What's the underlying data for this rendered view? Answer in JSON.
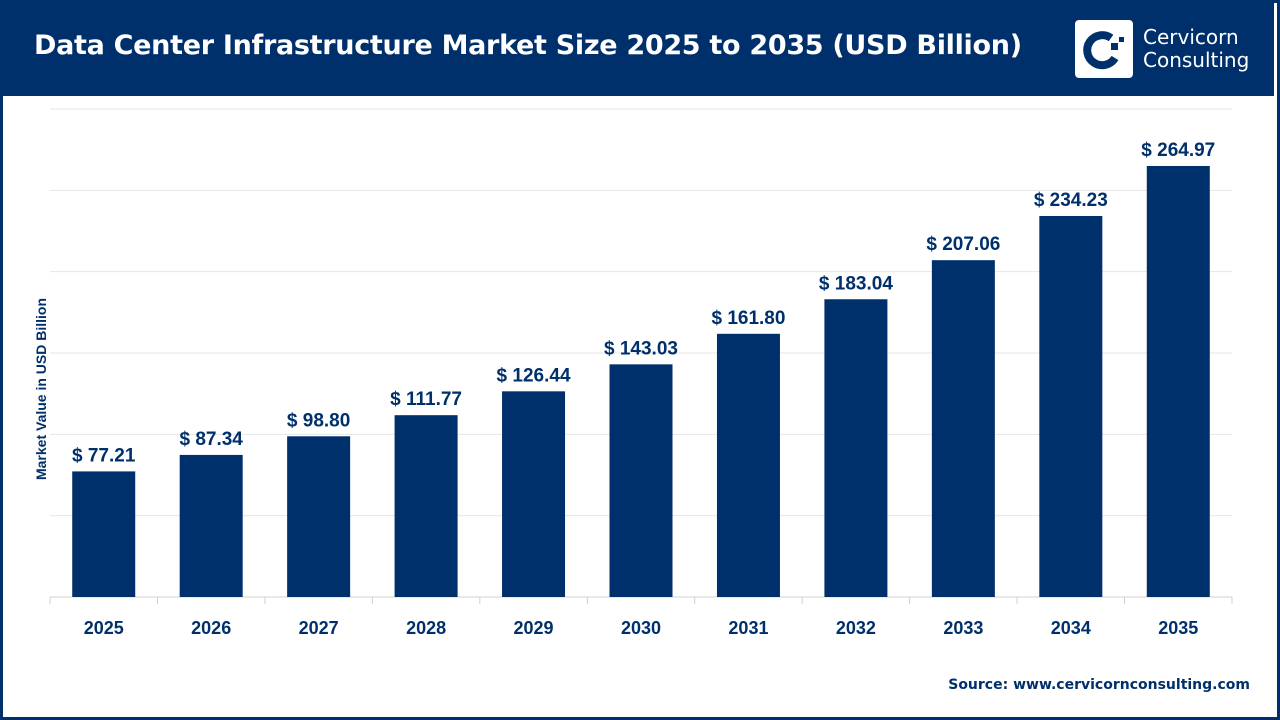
{
  "header": {
    "title": "Data Center Infrastructure Market Size 2025 to 2035 (USD Billion)"
  },
  "logo": {
    "line1": "Cervicorn",
    "line2": "Consulting"
  },
  "source": "Source: www.cervicornconsulting.com",
  "colors": {
    "brand": "#00306b",
    "bar": "#00306b",
    "grid": "#e6e6e6"
  },
  "chart_data": {
    "type": "bar",
    "title": "Data Center Infrastructure Market Size 2025 to 2035 (USD Billion)",
    "xlabel": "",
    "ylabel": "Market Value in USD Billion",
    "ylim": [
      0,
      300
    ],
    "grid": true,
    "categories": [
      "2025",
      "2026",
      "2027",
      "2028",
      "2029",
      "2030",
      "2031",
      "2032",
      "2033",
      "2034",
      "2035"
    ],
    "values": [
      77.21,
      87.34,
      98.8,
      111.77,
      126.44,
      143.03,
      161.8,
      183.04,
      207.06,
      234.23,
      264.97
    ],
    "data_labels": [
      "$ 77.21",
      "$ 87.34",
      "$ 98.80",
      "$ 111.77",
      "$ 126.44",
      "$ 143.03",
      "$ 161.80",
      "$ 183.04",
      "$ 207.06",
      "$ 234.23",
      "$ 264.97"
    ]
  }
}
